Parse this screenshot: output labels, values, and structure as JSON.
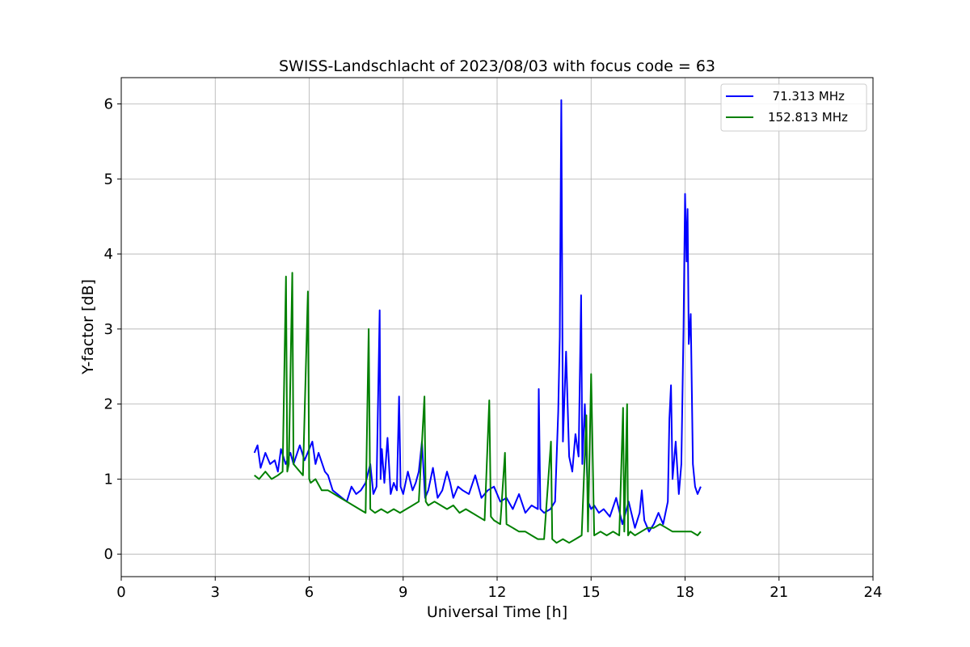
{
  "chart_data": {
    "type": "line",
    "title": "SWISS-Landschlacht of 2023/08/03 with focus code = 63",
    "xlabel": "Universal Time [h]",
    "ylabel": "Y-factor [dB]",
    "xlim": [
      0,
      24
    ],
    "ylim": [
      -0.3,
      6.35
    ],
    "xticks": [
      0,
      3,
      6,
      9,
      12,
      15,
      18,
      21,
      24
    ],
    "yticks": [
      0,
      1,
      2,
      3,
      4,
      5,
      6
    ],
    "grid": true,
    "legend_position": "top-right",
    "series": [
      {
        "name": "71.313 MHz",
        "legend_label": "  71.313 MHz",
        "color": "#0000ff",
        "x": [
          4.25,
          4.35,
          4.45,
          4.6,
          4.75,
          4.9,
          5.0,
          5.1,
          5.25,
          5.4,
          5.5,
          5.7,
          5.85,
          6.0,
          6.1,
          6.2,
          6.3,
          6.5,
          6.6,
          6.75,
          6.9,
          7.05,
          7.2,
          7.35,
          7.5,
          7.65,
          7.8,
          7.95,
          8.05,
          8.15,
          8.25,
          8.28,
          8.32,
          8.4,
          8.5,
          8.6,
          8.7,
          8.8,
          8.87,
          8.92,
          9.0,
          9.15,
          9.3,
          9.4,
          9.5,
          9.6,
          9.7,
          9.8,
          9.95,
          10.1,
          10.25,
          10.4,
          10.5,
          10.6,
          10.75,
          10.9,
          11.1,
          11.3,
          11.5,
          11.7,
          11.9,
          12.1,
          12.3,
          12.5,
          12.7,
          12.9,
          13.1,
          13.3,
          13.33,
          13.38,
          13.5,
          13.7,
          13.85,
          13.95,
          14.0,
          14.05,
          14.1,
          14.2,
          14.3,
          14.4,
          14.5,
          14.6,
          14.68,
          14.72,
          14.8,
          14.9,
          15.0,
          15.1,
          15.25,
          15.4,
          15.6,
          15.8,
          16.0,
          16.2,
          16.4,
          16.55,
          16.62,
          16.7,
          16.85,
          17.0,
          17.15,
          17.3,
          17.45,
          17.5,
          17.55,
          17.6,
          17.7,
          17.8,
          17.88,
          17.95,
          18.0,
          18.05,
          18.08,
          18.12,
          18.18,
          18.25,
          18.32,
          18.4,
          18.5
        ],
        "y": [
          1.35,
          1.45,
          1.15,
          1.35,
          1.2,
          1.25,
          1.1,
          1.4,
          1.2,
          1.35,
          1.2,
          1.45,
          1.25,
          1.4,
          1.5,
          1.2,
          1.35,
          1.1,
          1.05,
          0.85,
          0.8,
          0.75,
          0.7,
          0.9,
          0.8,
          0.85,
          0.95,
          1.2,
          0.8,
          0.9,
          3.25,
          1.0,
          1.4,
          0.95,
          1.55,
          0.8,
          0.95,
          0.85,
          2.1,
          0.9,
          0.8,
          1.1,
          0.85,
          0.95,
          1.1,
          1.5,
          0.75,
          0.85,
          1.15,
          0.75,
          0.85,
          1.1,
          0.95,
          0.75,
          0.9,
          0.85,
          0.8,
          1.05,
          0.75,
          0.85,
          0.9,
          0.7,
          0.75,
          0.6,
          0.8,
          0.55,
          0.65,
          0.6,
          2.2,
          0.6,
          0.55,
          0.6,
          0.7,
          1.9,
          2.9,
          6.05,
          1.5,
          2.7,
          1.3,
          1.1,
          1.6,
          1.3,
          3.45,
          1.2,
          2.0,
          0.7,
          0.6,
          0.65,
          0.55,
          0.6,
          0.5,
          0.75,
          0.4,
          0.7,
          0.35,
          0.55,
          0.85,
          0.45,
          0.3,
          0.4,
          0.55,
          0.4,
          0.7,
          1.8,
          2.25,
          1.0,
          1.5,
          0.8,
          1.2,
          3.0,
          4.8,
          3.9,
          4.6,
          2.8,
          3.2,
          1.2,
          0.9,
          0.8,
          0.9
        ]
      },
      {
        "name": "152.813 MHz",
        "legend_label": "152.813 MHz",
        "color": "#008000",
        "x": [
          4.25,
          4.4,
          4.6,
          4.8,
          5.0,
          5.15,
          5.26,
          5.3,
          5.35,
          5.46,
          5.5,
          5.6,
          5.8,
          5.96,
          6.0,
          6.05,
          6.2,
          6.4,
          6.6,
          6.8,
          7.0,
          7.2,
          7.4,
          7.6,
          7.8,
          7.9,
          7.95,
          8.1,
          8.3,
          8.5,
          8.7,
          8.9,
          9.1,
          9.3,
          9.5,
          9.68,
          9.72,
          9.8,
          10.0,
          10.2,
          10.4,
          10.6,
          10.8,
          11.0,
          11.2,
          11.4,
          11.6,
          11.75,
          11.8,
          11.9,
          12.1,
          12.25,
          12.3,
          12.5,
          12.7,
          12.9,
          13.1,
          13.3,
          13.5,
          13.72,
          13.76,
          13.9,
          14.1,
          14.3,
          14.5,
          14.7,
          14.85,
          14.9,
          15.0,
          15.1,
          15.3,
          15.5,
          15.7,
          15.9,
          16.02,
          16.06,
          16.15,
          16.18,
          16.25,
          16.4,
          16.6,
          16.8,
          17.0,
          17.2,
          17.4,
          17.6,
          17.8,
          18.0,
          18.2,
          18.4,
          18.5
        ],
        "y": [
          1.05,
          1.0,
          1.1,
          1.0,
          1.05,
          1.1,
          3.7,
          1.1,
          1.2,
          3.75,
          1.2,
          1.15,
          1.05,
          3.5,
          1.0,
          0.95,
          1.0,
          0.85,
          0.85,
          0.8,
          0.75,
          0.7,
          0.65,
          0.6,
          0.55,
          3.0,
          0.6,
          0.55,
          0.6,
          0.55,
          0.6,
          0.55,
          0.6,
          0.65,
          0.7,
          2.1,
          0.7,
          0.65,
          0.7,
          0.65,
          0.6,
          0.65,
          0.55,
          0.6,
          0.55,
          0.5,
          0.45,
          2.05,
          0.5,
          0.45,
          0.4,
          1.35,
          0.4,
          0.35,
          0.3,
          0.3,
          0.25,
          0.2,
          0.2,
          1.5,
          0.2,
          0.15,
          0.2,
          0.15,
          0.2,
          0.25,
          1.85,
          0.3,
          2.4,
          0.25,
          0.3,
          0.25,
          0.3,
          0.25,
          1.95,
          0.3,
          2.0,
          0.25,
          0.3,
          0.25,
          0.3,
          0.35,
          0.35,
          0.4,
          0.35,
          0.3,
          0.3,
          0.3,
          0.3,
          0.25,
          0.3
        ]
      }
    ]
  }
}
